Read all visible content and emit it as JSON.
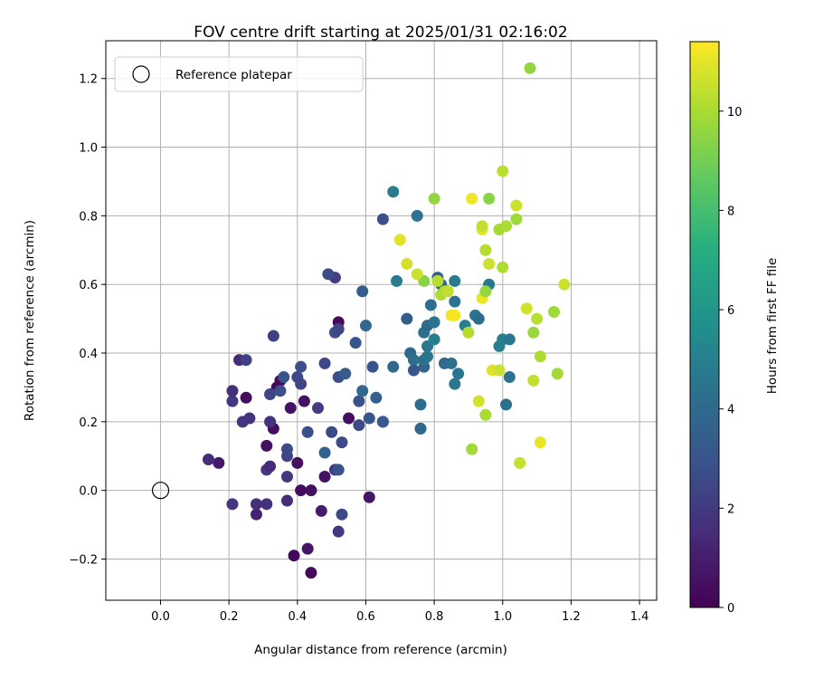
{
  "chart_data": {
    "type": "scatter",
    "title": "FOV centre drift starting at 2025/01/31 02:16:02",
    "xlabel": "Angular distance from reference (arcmin)",
    "ylabel": "Rotation from reference (arcmin)",
    "xlim": [
      -0.16,
      1.45
    ],
    "ylim": [
      -0.32,
      1.31
    ],
    "xticks": [
      0.0,
      0.2,
      0.4,
      0.6,
      0.8,
      1.0,
      1.2,
      1.4
    ],
    "xtick_labels": [
      "0.0",
      "0.2",
      "0.4",
      "0.6",
      "0.8",
      "1.0",
      "1.2",
      "1.4"
    ],
    "yticks": [
      -0.2,
      0.0,
      0.2,
      0.4,
      0.6,
      0.8,
      1.0,
      1.2
    ],
    "ytick_labels": [
      "−0.2",
      "0.0",
      "0.2",
      "0.4",
      "0.6",
      "0.8",
      "1.0",
      "1.2"
    ],
    "grid": true,
    "legend": {
      "position": "top-left",
      "entries": [
        "Reference platepar"
      ]
    },
    "reference_point": {
      "x": 0.0,
      "y": 0.0
    },
    "colorbar": {
      "label": "Hours from first FF file",
      "colormap": "viridis",
      "range": [
        0,
        11.4
      ],
      "ticks": [
        0,
        2,
        4,
        6,
        8,
        10
      ],
      "tick_labels": [
        "0",
        "2",
        "4",
        "6",
        "8",
        "10"
      ]
    },
    "series": [
      {
        "points": [
          {
            "x": 0.35,
            "y": 0.32,
            "c": 0.4
          },
          {
            "x": 0.34,
            "y": 0.3,
            "c": 0.3
          },
          {
            "x": 0.31,
            "y": 0.13,
            "c": 0.5
          },
          {
            "x": 0.33,
            "y": 0.18,
            "c": 0.4
          },
          {
            "x": 0.38,
            "y": 0.24,
            "c": 0.6
          },
          {
            "x": 0.4,
            "y": 0.08,
            "c": 0.5
          },
          {
            "x": 0.41,
            "y": 0.0,
            "c": 0.4
          },
          {
            "x": 0.44,
            "y": 0.0,
            "c": 0.5
          },
          {
            "x": 0.39,
            "y": -0.19,
            "c": 0.2
          },
          {
            "x": 0.43,
            "y": -0.17,
            "c": 0.7
          },
          {
            "x": 0.44,
            "y": -0.24,
            "c": 0.3
          },
          {
            "x": 0.47,
            "y": -0.06,
            "c": 0.9
          },
          {
            "x": 0.48,
            "y": 0.04,
            "c": 0.6
          },
          {
            "x": 0.55,
            "y": 0.21,
            "c": 0.5
          },
          {
            "x": 0.52,
            "y": 0.49,
            "c": 0.3
          },
          {
            "x": 0.61,
            "y": -0.02,
            "c": 0.7
          },
          {
            "x": 0.42,
            "y": 0.26,
            "c": 0.6
          },
          {
            "x": 0.25,
            "y": 0.27,
            "c": 0.4
          },
          {
            "x": 0.17,
            "y": 0.08,
            "c": 0.8
          },
          {
            "x": 0.14,
            "y": 0.09,
            "c": 1.5
          },
          {
            "x": 0.21,
            "y": -0.04,
            "c": 1.8
          },
          {
            "x": 0.28,
            "y": -0.04,
            "c": 1.6
          },
          {
            "x": 0.28,
            "y": -0.07,
            "c": 1.2
          },
          {
            "x": 0.31,
            "y": -0.04,
            "c": 1.7
          },
          {
            "x": 0.37,
            "y": -0.03,
            "c": 1.5
          },
          {
            "x": 0.37,
            "y": 0.04,
            "c": 1.9
          },
          {
            "x": 0.31,
            "y": 0.06,
            "c": 1.9
          },
          {
            "x": 0.32,
            "y": 0.07,
            "c": 1.4
          },
          {
            "x": 0.24,
            "y": 0.2,
            "c": 1.8
          },
          {
            "x": 0.26,
            "y": 0.21,
            "c": 1.7
          },
          {
            "x": 0.21,
            "y": 0.26,
            "c": 1.9
          },
          {
            "x": 0.21,
            "y": 0.29,
            "c": 1.6
          },
          {
            "x": 0.23,
            "y": 0.38,
            "c": 1.4
          },
          {
            "x": 0.25,
            "y": 0.38,
            "c": 2.2
          },
          {
            "x": 0.32,
            "y": 0.2,
            "c": 1.7
          },
          {
            "x": 0.32,
            "y": 0.28,
            "c": 2.4
          },
          {
            "x": 0.35,
            "y": 0.29,
            "c": 2.8
          },
          {
            "x": 0.36,
            "y": 0.33,
            "c": 3.0
          },
          {
            "x": 0.4,
            "y": 0.33,
            "c": 2.6
          },
          {
            "x": 0.41,
            "y": 0.31,
            "c": 2.4
          },
          {
            "x": 0.41,
            "y": 0.36,
            "c": 2.8
          },
          {
            "x": 0.33,
            "y": 0.45,
            "c": 2.3
          },
          {
            "x": 0.37,
            "y": 0.12,
            "c": 2.6
          },
          {
            "x": 0.37,
            "y": 0.1,
            "c": 2.4
          },
          {
            "x": 0.43,
            "y": 0.17,
            "c": 2.8
          },
          {
            "x": 0.46,
            "y": 0.24,
            "c": 2.1
          },
          {
            "x": 0.48,
            "y": 0.37,
            "c": 2.5
          },
          {
            "x": 0.5,
            "y": 0.17,
            "c": 2.6
          },
          {
            "x": 0.51,
            "y": 0.06,
            "c": 1.9
          },
          {
            "x": 0.52,
            "y": 0.06,
            "c": 2.9
          },
          {
            "x": 0.52,
            "y": -0.12,
            "c": 1.9
          },
          {
            "x": 0.53,
            "y": -0.07,
            "c": 2.5
          },
          {
            "x": 0.53,
            "y": 0.14,
            "c": 2.6
          },
          {
            "x": 0.52,
            "y": 0.33,
            "c": 2.7
          },
          {
            "x": 0.51,
            "y": 0.46,
            "c": 2.8
          },
          {
            "x": 0.52,
            "y": 0.47,
            "c": 2.4
          },
          {
            "x": 0.51,
            "y": 0.62,
            "c": 2.1
          },
          {
            "x": 0.49,
            "y": 0.63,
            "c": 2.6
          },
          {
            "x": 0.54,
            "y": 0.34,
            "c": 3.3
          },
          {
            "x": 0.48,
            "y": 0.11,
            "c": 3.6
          },
          {
            "x": 0.58,
            "y": 0.19,
            "c": 2.6
          },
          {
            "x": 0.58,
            "y": 0.26,
            "c": 2.9
          },
          {
            "x": 0.57,
            "y": 0.43,
            "c": 3.1
          },
          {
            "x": 0.59,
            "y": 0.58,
            "c": 3.4
          },
          {
            "x": 0.6,
            "y": 0.48,
            "c": 3.8
          },
          {
            "x": 0.59,
            "y": 0.29,
            "c": 3.9
          },
          {
            "x": 0.61,
            "y": 0.21,
            "c": 3.1
          },
          {
            "x": 0.62,
            "y": 0.36,
            "c": 3.0
          },
          {
            "x": 0.63,
            "y": 0.27,
            "c": 3.6
          },
          {
            "x": 0.65,
            "y": 0.2,
            "c": 3.5
          },
          {
            "x": 0.65,
            "y": 0.2,
            "c": 3.2
          },
          {
            "x": 0.65,
            "y": 0.79,
            "c": 2.8
          },
          {
            "x": 0.68,
            "y": 0.87,
            "c": 4.8
          },
          {
            "x": 0.68,
            "y": 0.36,
            "c": 4.0
          },
          {
            "x": 0.69,
            "y": 0.61,
            "c": 4.8
          },
          {
            "x": 0.72,
            "y": 0.5,
            "c": 3.4
          },
          {
            "x": 0.73,
            "y": 0.4,
            "c": 3.9
          },
          {
            "x": 0.74,
            "y": 0.38,
            "c": 4.3
          },
          {
            "x": 0.74,
            "y": 0.35,
            "c": 3.1
          },
          {
            "x": 0.75,
            "y": 0.8,
            "c": 4.4
          },
          {
            "x": 0.76,
            "y": 0.25,
            "c": 4.1
          },
          {
            "x": 0.76,
            "y": 0.18,
            "c": 3.3
          },
          {
            "x": 0.76,
            "y": 0.18,
            "c": 3.9
          },
          {
            "x": 0.77,
            "y": 0.36,
            "c": 3.7
          },
          {
            "x": 0.77,
            "y": 0.38,
            "c": 4.2
          },
          {
            "x": 0.78,
            "y": 0.39,
            "c": 4.5
          },
          {
            "x": 0.77,
            "y": 0.46,
            "c": 4.3
          },
          {
            "x": 0.78,
            "y": 0.48,
            "c": 4.0
          },
          {
            "x": 0.78,
            "y": 0.42,
            "c": 4.6
          },
          {
            "x": 0.8,
            "y": 0.44,
            "c": 4.9
          },
          {
            "x": 0.8,
            "y": 0.49,
            "c": 4.4
          },
          {
            "x": 0.79,
            "y": 0.54,
            "c": 4.2
          },
          {
            "x": 0.81,
            "y": 0.62,
            "c": 3.4
          },
          {
            "x": 0.82,
            "y": 0.6,
            "c": 3.7
          },
          {
            "x": 0.83,
            "y": 0.37,
            "c": 4.0
          },
          {
            "x": 0.85,
            "y": 0.37,
            "c": 4.3
          },
          {
            "x": 0.86,
            "y": 0.55,
            "c": 4.4
          },
          {
            "x": 0.86,
            "y": 0.61,
            "c": 4.8
          },
          {
            "x": 0.86,
            "y": 0.31,
            "c": 4.6
          },
          {
            "x": 0.87,
            "y": 0.34,
            "c": 4.5
          },
          {
            "x": 0.89,
            "y": 0.48,
            "c": 4.9
          },
          {
            "x": 0.92,
            "y": 0.51,
            "c": 4.5
          },
          {
            "x": 0.93,
            "y": 0.5,
            "c": 4.2
          },
          {
            "x": 0.96,
            "y": 0.6,
            "c": 4.6
          },
          {
            "x": 0.99,
            "y": 0.42,
            "c": 4.9
          },
          {
            "x": 1.0,
            "y": 0.44,
            "c": 5.0
          },
          {
            "x": 1.01,
            "y": 0.25,
            "c": 4.3
          },
          {
            "x": 1.02,
            "y": 0.44,
            "c": 4.7
          },
          {
            "x": 1.02,
            "y": 0.33,
            "c": 4.4
          },
          {
            "x": 0.77,
            "y": 0.61,
            "c": 9.4
          },
          {
            "x": 0.8,
            "y": 0.85,
            "c": 9.6
          },
          {
            "x": 0.81,
            "y": 0.61,
            "c": 10.3
          },
          {
            "x": 0.82,
            "y": 0.57,
            "c": 10.1
          },
          {
            "x": 0.83,
            "y": 0.58,
            "c": 10.0
          },
          {
            "x": 0.84,
            "y": 0.58,
            "c": 10.4
          },
          {
            "x": 0.85,
            "y": 0.51,
            "c": 11.2
          },
          {
            "x": 0.86,
            "y": 0.51,
            "c": 10.7
          },
          {
            "x": 0.9,
            "y": 0.46,
            "c": 10.2
          },
          {
            "x": 0.91,
            "y": 0.12,
            "c": 9.9
          },
          {
            "x": 0.91,
            "y": 0.85,
            "c": 11.2
          },
          {
            "x": 0.93,
            "y": 0.26,
            "c": 10.7
          },
          {
            "x": 0.94,
            "y": 0.56,
            "c": 11.1
          },
          {
            "x": 0.94,
            "y": 0.76,
            "c": 11.0
          },
          {
            "x": 0.94,
            "y": 0.77,
            "c": 10.4
          },
          {
            "x": 0.95,
            "y": 0.58,
            "c": 9.6
          },
          {
            "x": 0.95,
            "y": 0.7,
            "c": 10.2
          },
          {
            "x": 0.95,
            "y": 0.22,
            "c": 10.0
          },
          {
            "x": 0.96,
            "y": 0.66,
            "c": 10.6
          },
          {
            "x": 0.96,
            "y": 0.85,
            "c": 9.4
          },
          {
            "x": 0.97,
            "y": 0.35,
            "c": 10.9
          },
          {
            "x": 0.99,
            "y": 0.35,
            "c": 10.6
          },
          {
            "x": 0.99,
            "y": 0.76,
            "c": 9.9
          },
          {
            "x": 1.0,
            "y": 0.93,
            "c": 10.3
          },
          {
            "x": 1.0,
            "y": 0.65,
            "c": 10.1
          },
          {
            "x": 1.01,
            "y": 0.77,
            "c": 10.0
          },
          {
            "x": 1.04,
            "y": 0.79,
            "c": 9.8
          },
          {
            "x": 1.04,
            "y": 0.83,
            "c": 10.6
          },
          {
            "x": 1.05,
            "y": 0.08,
            "c": 10.5
          },
          {
            "x": 1.07,
            "y": 0.53,
            "c": 10.7
          },
          {
            "x": 1.08,
            "y": 1.23,
            "c": 9.6
          },
          {
            "x": 1.09,
            "y": 0.46,
            "c": 9.7
          },
          {
            "x": 1.09,
            "y": 0.32,
            "c": 10.4
          },
          {
            "x": 1.1,
            "y": 0.5,
            "c": 10.3
          },
          {
            "x": 1.11,
            "y": 0.39,
            "c": 10.1
          },
          {
            "x": 1.11,
            "y": 0.14,
            "c": 11.1
          },
          {
            "x": 1.15,
            "y": 0.52,
            "c": 9.8
          },
          {
            "x": 1.16,
            "y": 0.34,
            "c": 9.9
          },
          {
            "x": 1.18,
            "y": 0.6,
            "c": 10.6
          },
          {
            "x": 0.7,
            "y": 0.73,
            "c": 10.9
          },
          {
            "x": 0.72,
            "y": 0.66,
            "c": 10.7
          },
          {
            "x": 0.75,
            "y": 0.63,
            "c": 10.6
          },
          {
            "x": 0.86,
            "y": 0.51,
            "c": 11.3
          }
        ]
      }
    ]
  }
}
